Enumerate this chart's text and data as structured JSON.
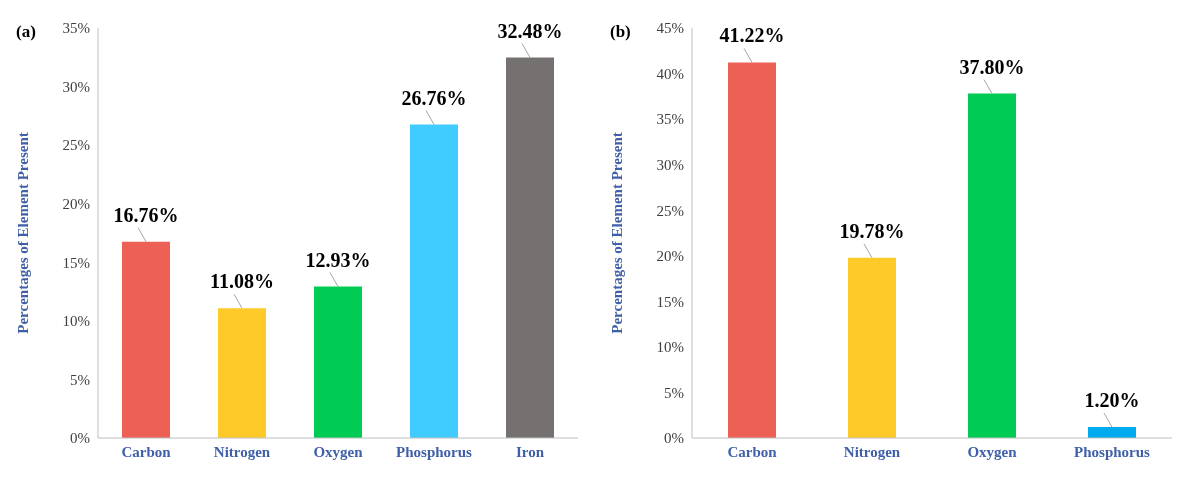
{
  "chart_data": [
    {
      "type": "bar",
      "annotations": [
        "(a)"
      ],
      "ylabel": "Percentages of Element Present",
      "categories": [
        "Carbon",
        "Nitrogen",
        "Oxygen",
        "Phosphorus",
        "Iron"
      ],
      "values": [
        16.76,
        11.08,
        12.93,
        26.76,
        32.48
      ],
      "value_labels": [
        "16.76%",
        "11.08%",
        "12.93%",
        "26.76%",
        "32.48%"
      ],
      "colors": [
        "#ec6055",
        "#fdca2a",
        "#00cc55",
        "#40ccff",
        "#767171"
      ],
      "ylim": [
        0,
        35
      ],
      "yticks": [
        {
          "value": 0,
          "label": "0%"
        },
        {
          "value": 5,
          "label": "5%"
        },
        {
          "value": 10,
          "label": "10%"
        },
        {
          "value": 15,
          "label": "15%"
        },
        {
          "value": 20,
          "label": "20%"
        },
        {
          "value": 25,
          "label": "25%"
        },
        {
          "value": 30,
          "label": "30%"
        },
        {
          "value": 35,
          "label": "35%"
        }
      ],
      "grid": false,
      "legend": false
    },
    {
      "type": "bar",
      "annotations": [
        "(b)"
      ],
      "ylabel": "Percentages of Element Present",
      "categories": [
        "Carbon",
        "Nitrogen",
        "Oxygen",
        "Phosphorus"
      ],
      "values": [
        41.22,
        19.78,
        37.8,
        1.2
      ],
      "value_labels": [
        "41.22%",
        "19.78%",
        "37.80%",
        "1.20%"
      ],
      "colors": [
        "#ec6055",
        "#fdca2a",
        "#00cc55",
        "#00aaee"
      ],
      "ylim": [
        0,
        45
      ],
      "yticks": [
        {
          "value": 0,
          "label": "0%"
        },
        {
          "value": 5,
          "label": "5%"
        },
        {
          "value": 10,
          "label": "10%"
        },
        {
          "value": 15,
          "label": "15%"
        },
        {
          "value": 20,
          "label": "20%"
        },
        {
          "value": 25,
          "label": "25%"
        },
        {
          "value": 30,
          "label": "30%"
        },
        {
          "value": 35,
          "label": "35%"
        },
        {
          "value": 40,
          "label": "40%"
        },
        {
          "value": 45,
          "label": "45%"
        }
      ],
      "grid": false,
      "legend": false
    }
  ]
}
